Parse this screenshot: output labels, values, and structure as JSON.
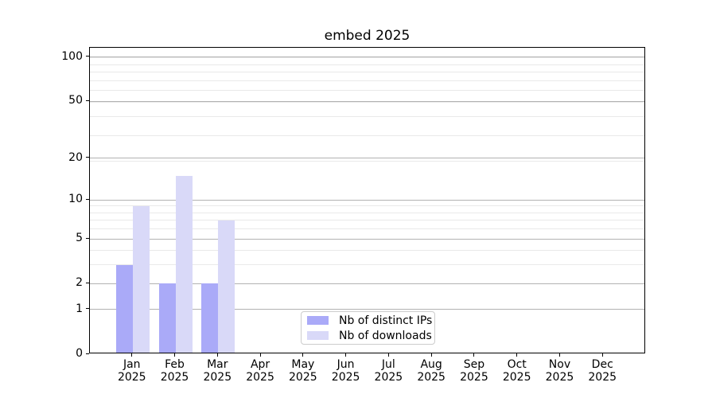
{
  "chart_data": {
    "type": "bar",
    "title": "embed 2025",
    "categories": [
      "Jan",
      "Feb",
      "Mar",
      "Apr",
      "May",
      "Jun",
      "Jul",
      "Aug",
      "Sep",
      "Oct",
      "Nov",
      "Dec"
    ],
    "x_year_label": "2025",
    "series": [
      {
        "name": "Nb of distinct IPs",
        "color": "#aaaaf8",
        "values": [
          3,
          2,
          2,
          0,
          0,
          0,
          0,
          0,
          0,
          0,
          0,
          0
        ]
      },
      {
        "name": "Nb of downloads",
        "color": "#d9d9f8",
        "values": [
          9,
          15,
          7,
          0,
          0,
          0,
          0,
          0,
          0,
          0,
          0,
          0
        ]
      }
    ],
    "y_scale": "log(1+x)",
    "ylim": [
      0,
      116
    ],
    "y_ticks": [
      0,
      1,
      2,
      5,
      10,
      20,
      50,
      100
    ],
    "y_minor_gridlines": [
      1,
      2,
      3,
      4,
      5,
      6,
      7,
      8,
      9,
      19,
      29,
      39,
      49,
      59,
      69,
      79,
      89,
      99
    ],
    "grid": true,
    "legend": {
      "position": "lower center inside"
    },
    "colors": {
      "major_grid": "#b2b2b2",
      "minor_grid": "#e9e9e9",
      "spine": "#000000",
      "text": "#000000",
      "background": "#ffffff"
    }
  }
}
